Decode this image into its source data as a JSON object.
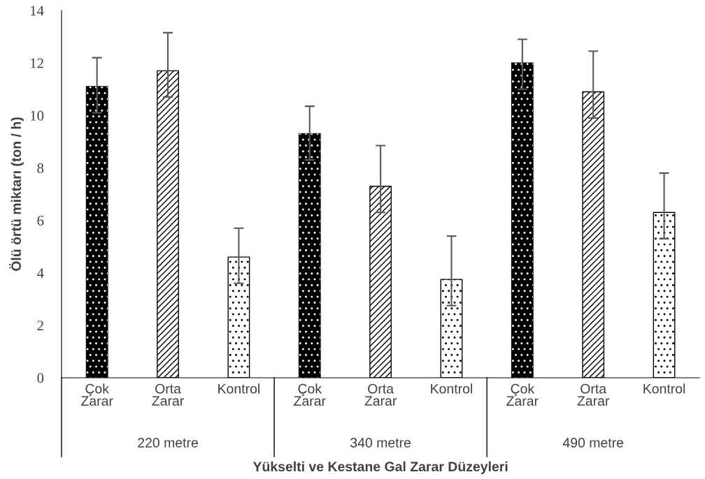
{
  "chart_data": {
    "type": "bar",
    "xlabel": "Yükselti ve Kestane Gal Zarar Düzeyleri",
    "ylabel": "Ölü örtü miktarı (ton / h)",
    "categories": [
      "Çok\nZarar",
      "Orta\nZarar",
      "Kontrol",
      "Çok\nZarar",
      "Orta\nZarar",
      "Kontrol",
      "Çok\nZarar",
      "Orta\nZarar",
      "Kontrol"
    ],
    "values": [
      11.1,
      11.7,
      4.6,
      9.3,
      7.3,
      3.75,
      12.0,
      10.9,
      6.3
    ],
    "colors": [
      "#000000",
      "#ffffff",
      "#ffffff",
      "#000000",
      "#ffffff",
      "#ffffff",
      "#000000",
      "#ffffff",
      "#ffffff"
    ],
    "errors": [
      [
        10.1,
        12.2
      ],
      [
        10.7,
        13.15
      ],
      [
        3.6,
        5.7
      ],
      [
        8.3,
        10.35
      ],
      [
        6.3,
        8.85
      ],
      [
        2.75,
        5.4
      ],
      [
        11.0,
        12.9
      ],
      [
        9.9,
        12.45
      ],
      [
        5.3,
        7.8
      ]
    ],
    "annotations": [
      "220 metre",
      "340 metre",
      "490 metre"
    ],
    "ylim": [
      0,
      14
    ],
    "yticks": [
      0,
      2,
      4,
      6,
      8,
      10,
      12,
      14
    ],
    "grid": false,
    "legend": false
  }
}
